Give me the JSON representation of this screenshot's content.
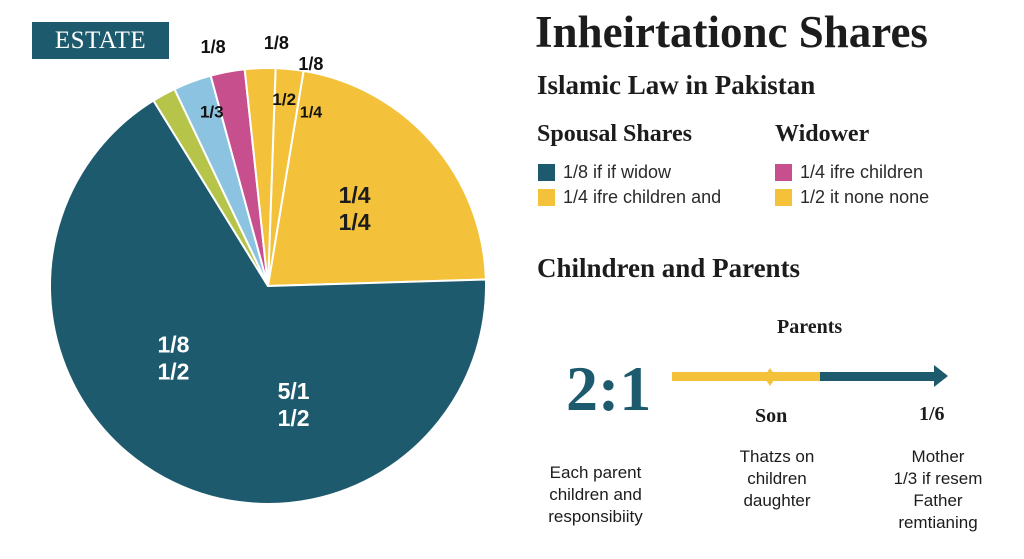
{
  "header": {
    "title": "Inheirtationc Shares",
    "subtitle": "Islamic Law in Pakistan"
  },
  "estate_label": "ESTATE",
  "chart_data": {
    "type": "pie",
    "slices": [
      {
        "fraction": 0.0206,
        "color": "#f3c23a",
        "labels": [
          "1/8"
        ]
      },
      {
        "fraction": 0.2191,
        "color": "#f3c23a",
        "labels": [
          "1/4",
          "1/4"
        ]
      },
      {
        "fraction": 0.6667,
        "color": "#1e5a6d",
        "labels": [
          "1/8",
          "1/2",
          "5/1",
          "1/2"
        ]
      },
      {
        "fraction": 0.0175,
        "color": "#b6c44a",
        "labels": []
      },
      {
        "fraction": 0.0282,
        "color": "#8cc3e0",
        "labels": [
          "1/3",
          "1/8"
        ]
      },
      {
        "fraction": 0.0253,
        "color": "#c84f8e",
        "labels": [
          "1/2",
          "1/8"
        ]
      },
      {
        "fraction": 0.0226,
        "color": "#f3c23a",
        "labels": [
          "1/4"
        ]
      }
    ]
  },
  "spousal": {
    "heading": "Spousal Shares",
    "items": [
      {
        "color": "#1e5a6d",
        "label": "1/8 if if widow"
      },
      {
        "color": "#f3c23a",
        "label": "1/4 ifre children and"
      }
    ]
  },
  "widower": {
    "heading": "Widower",
    "items": [
      {
        "color": "#c84f8e",
        "label": "1/4 ifre children"
      },
      {
        "color": "#f3c23a",
        "label": "1/2 it none none"
      }
    ]
  },
  "children_parents": {
    "heading": "Chilndren and Parents",
    "ratio": "2:1",
    "parents_label": "Parents",
    "son_label": "Son",
    "sixth_label": "1/6",
    "note_left": [
      "Each parent",
      "children and",
      "responsibiity"
    ],
    "note_mid": [
      "Thatzs on",
      "children",
      "daughter"
    ],
    "note_right": [
      "Mother",
      "1/3 if resem",
      "Father",
      "remtianing"
    ]
  }
}
